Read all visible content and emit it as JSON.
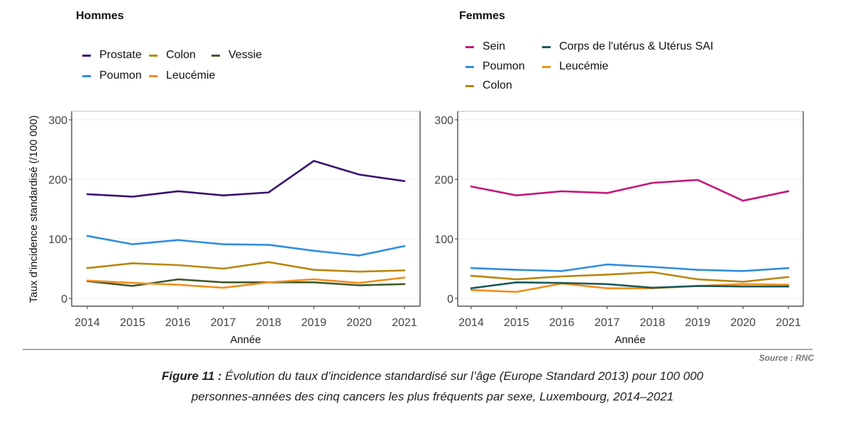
{
  "chart_data": [
    {
      "type": "line",
      "title": "Hommes",
      "xlabel": "Année",
      "ylabel": "Taux d'incidence standardisé (/100 000)",
      "x": [
        2014,
        2015,
        2016,
        2017,
        2018,
        2019,
        2020,
        2021
      ],
      "x_tick_labels": [
        "2014",
        "2015",
        "2016",
        "2017",
        "2018",
        "2019",
        "2020",
        "2021"
      ],
      "y_ticks": [
        0,
        100,
        200,
        300
      ],
      "y_tick_labels": [
        "0",
        "100",
        "200",
        "300"
      ],
      "ylim": [
        -13,
        315
      ],
      "grid": true,
      "legend_position": "top",
      "series": [
        {
          "name": "Prostate",
          "color": "#3b0f70",
          "values": [
            175,
            171,
            180,
            173,
            178,
            231,
            208,
            197
          ]
        },
        {
          "name": "Poumon",
          "color": "#2e8de0",
          "values": [
            105,
            91,
            98,
            91,
            90,
            80,
            72,
            88
          ]
        },
        {
          "name": "Colon",
          "color": "#b8860b",
          "values": [
            51,
            59,
            56,
            50,
            61,
            48,
            45,
            47
          ]
        },
        {
          "name": "Leucémie",
          "color": "#f28e1c",
          "values": [
            30,
            26,
            23,
            18,
            27,
            32,
            26,
            35
          ]
        },
        {
          "name": "Vessie",
          "color": "#3f5a2a",
          "values": [
            29,
            21,
            32,
            27,
            27,
            27,
            22,
            24
          ]
        }
      ],
      "legend_order": [
        "Prostate",
        "Poumon",
        "Colon",
        "Leucémie",
        "Vessie"
      ]
    },
    {
      "type": "line",
      "title": "Femmes",
      "xlabel": "Année",
      "ylabel": "",
      "x": [
        2014,
        2015,
        2016,
        2017,
        2018,
        2019,
        2020,
        2021
      ],
      "x_tick_labels": [
        "2014",
        "2015",
        "2016",
        "2017",
        "2018",
        "2019",
        "2020",
        "2021"
      ],
      "y_ticks": [
        0,
        100,
        200,
        300
      ],
      "y_tick_labels": [
        "0",
        "100",
        "200",
        "300"
      ],
      "ylim": [
        -13,
        315
      ],
      "grid": true,
      "legend_position": "top",
      "series": [
        {
          "name": "Sein",
          "color": "#c2187a",
          "values": [
            188,
            173,
            180,
            177,
            194,
            199,
            164,
            180
          ]
        },
        {
          "name": "Poumon",
          "color": "#2e8de0",
          "values": [
            51,
            48,
            46,
            57,
            53,
            48,
            46,
            51
          ]
        },
        {
          "name": "Colon",
          "color": "#b8860b",
          "values": [
            38,
            32,
            37,
            40,
            44,
            32,
            28,
            36
          ]
        },
        {
          "name": "Corps de l'utérus & Utérus SAI",
          "color": "#1d5a5a",
          "values": [
            17,
            27,
            26,
            24,
            18,
            21,
            20,
            20
          ]
        },
        {
          "name": "Leucémie",
          "color": "#f28e1c",
          "values": [
            14,
            11,
            25,
            17,
            17,
            21,
            24,
            23
          ]
        }
      ],
      "legend_order": [
        "Sein",
        "Poumon",
        "Colon",
        "Corps de l'utérus & Utérus SAI",
        "Leucémie"
      ]
    }
  ],
  "source": "Source : RNC",
  "caption": {
    "label": "Figure 11 :",
    "line1": " Évolution du taux d’incidence standardisé sur l’âge (Europe Standard 2013) pour 100 000",
    "line2": "personnes-années des cinq cancers les plus fréquents par sexe, Luxembourg, 2014–2021"
  }
}
